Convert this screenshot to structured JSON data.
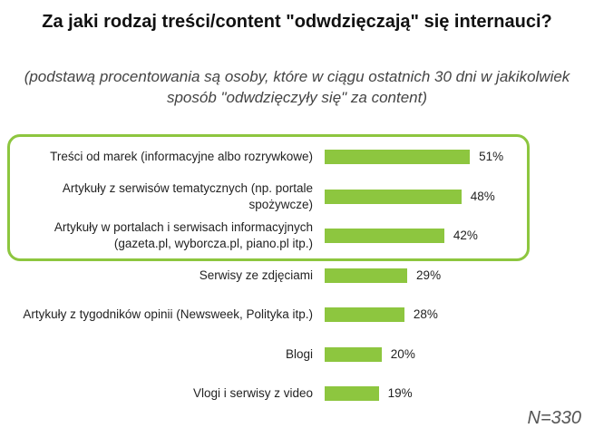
{
  "chart_data": {
    "type": "bar",
    "orientation": "horizontal",
    "title": "Za jaki rodzaj treści/content \"odwdzięczają\" się internauci?",
    "subtitle": "(podstawą procentowania są osoby, które w ciągu ostatnich 30 dni w jakikolwiek sposób \"odwdzięczyły się\" za content)",
    "categories": [
      "Treści od marek (informacyjne albo rozrywkowe)",
      "Artykuły z serwisów tematycznych (np. portale spożywcze)",
      "Artykuły w portalach i serwisach informacyjnych (gazeta.pl, wyborcza.pl, piano.pl itp.)",
      "Serwisy ze zdjęciami",
      "Artykuły z tygodników opinii (Newsweek, Polityka itp.)",
      "Blogi",
      "Vlogi i serwisy z video"
    ],
    "values": [
      51,
      48,
      42,
      29,
      28,
      20,
      19
    ],
    "value_labels": [
      "51%",
      "48%",
      "42%",
      "29%",
      "28%",
      "20%",
      "19%"
    ],
    "color": "#8dc63f",
    "annotation": "N=330"
  }
}
